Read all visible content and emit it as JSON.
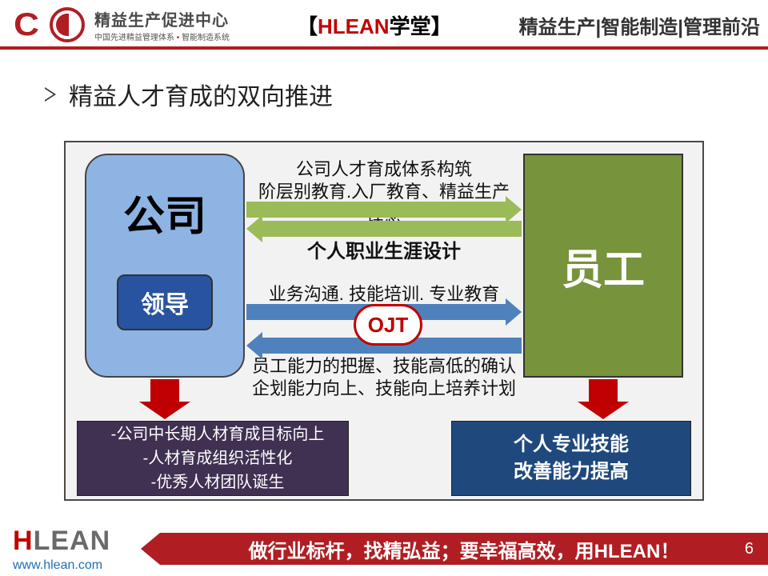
{
  "header": {
    "org_name": "精益生产促进中心",
    "org_sub_a": "中国先进精益管理体系",
    "org_sub_b": "智能制造系统",
    "brand_left_bracket": "【",
    "brand_red": "HLEAN",
    "brand_black": "学堂",
    "brand_right_bracket": "】",
    "tagline": "精益生产|智能制造|管理前沿",
    "accent_color": "#b01e23"
  },
  "title": "精益人才育成的双向推进",
  "diagram": {
    "background": "#f2f2f2",
    "border_color": "#4b4845",
    "company_box": {
      "label": "公司",
      "bg": "#8eb4e3"
    },
    "leader_box": {
      "label": "领导",
      "bg": "#2853a0"
    },
    "employee_box": {
      "label": "员工",
      "bg": "#77933c"
    },
    "arrow_green": "#9bbb59",
    "arrow_blue": "#4f81bd",
    "down_arrow_color": "#c00000",
    "ojt_label": "OJT",
    "center_lines": {
      "l1": "公司人才育成体系构筑",
      "l2": "阶层别教育.入厂教育、精益生产理念",
      "l3": "个人职业生涯设计",
      "l4": "业务沟通. 技能培训. 专业教育",
      "l6": "员工能力的把握、技能高低的确认",
      "l7": "企划能力向上、技能向上培养计划"
    },
    "bottom_left": {
      "bg": "#403152",
      "line1": "-公司中长期人材育成目标向上",
      "line2": "-人材育成组织活性化",
      "line3": "-优秀人材团队诞生"
    },
    "bottom_right": {
      "bg": "#1f497d",
      "line1": "个人专业技能",
      "line2": "改善能力提高"
    }
  },
  "footer": {
    "logo_h": "H",
    "logo_rest": "LEAN",
    "url": "www.hlean.com",
    "slogan": "做行业标杆，找精弘益；要幸福高效，用HLEAN！",
    "page_number": "6",
    "bar_color": "#b01e23"
  }
}
